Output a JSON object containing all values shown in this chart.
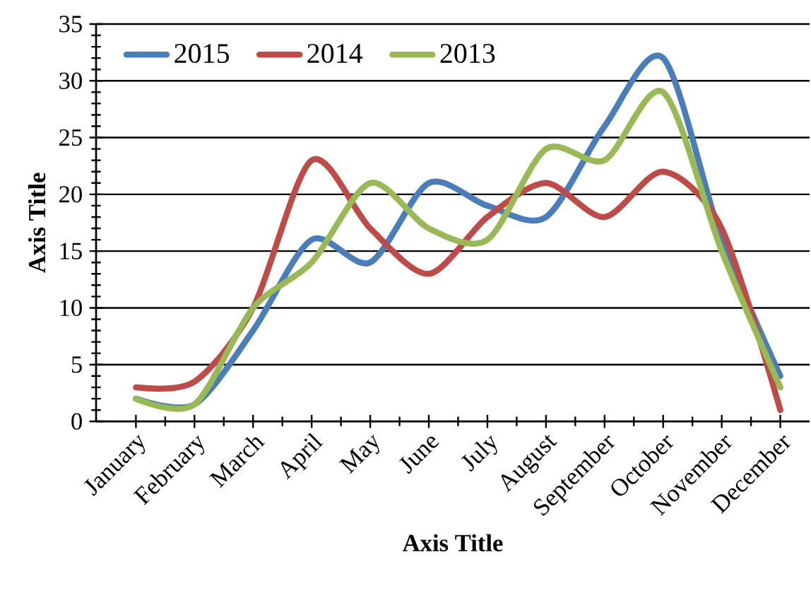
{
  "chart_data": {
    "type": "line",
    "xlabel": "Axis Title",
    "ylabel": "Axis Title",
    "categories": [
      "January",
      "February",
      "March",
      "April",
      "May",
      "June",
      "July",
      "August",
      "September",
      "October",
      "November",
      "December"
    ],
    "series": [
      {
        "name": "2015",
        "color": "#4a7ebb",
        "values": [
          2,
          1.5,
          8,
          16,
          14,
          21,
          19,
          18,
          26,
          32,
          16,
          4
        ]
      },
      {
        "name": "2014",
        "color": "#be4b48",
        "values": [
          3,
          3.5,
          10,
          23,
          17,
          13,
          18,
          21,
          18,
          22,
          17,
          1
        ]
      },
      {
        "name": "2013",
        "color": "#98b954",
        "values": [
          2,
          1.5,
          10,
          14,
          21,
          17,
          16,
          24,
          23,
          29,
          15,
          3
        ]
      }
    ],
    "ylim": [
      0,
      35
    ],
    "yticks": [
      0,
      5,
      10,
      15,
      20,
      25,
      30,
      35
    ],
    "grid": "y",
    "legend": "top left",
    "marker": "none",
    "line_style": "solid"
  }
}
